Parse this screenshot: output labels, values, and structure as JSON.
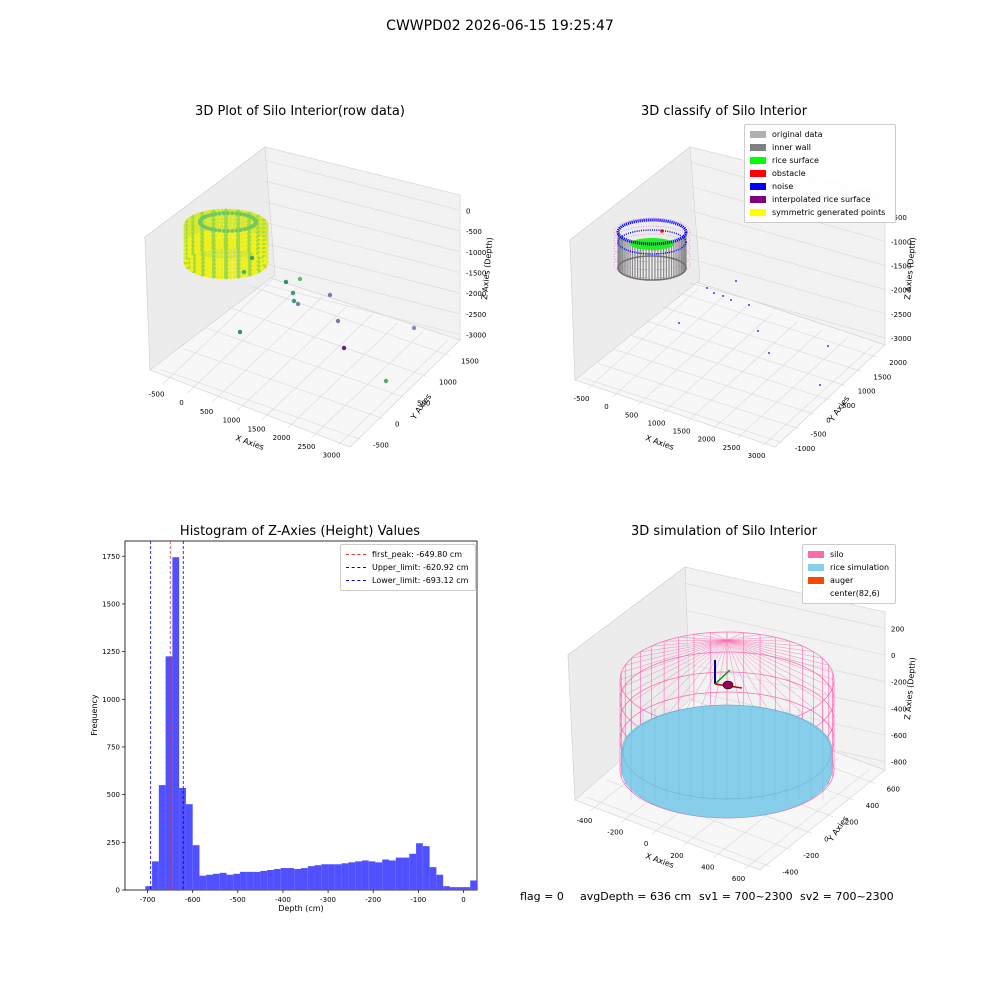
{
  "figure": {
    "suptitle": "CWWPD02 2026-06-15 19:25:47",
    "footer": {
      "flag": "flag = 0",
      "avg_depth": "avgDepth = 636 cm",
      "sv1": "sv1 = 700~2300",
      "sv2": "sv2 = 700~2300"
    }
  },
  "colors": {
    "histogram_bar": "#5050ff",
    "first_peak": "#e03030",
    "limits": "#0000cc",
    "silo": "#ff69b4",
    "rice_simulation": "#87ceeb",
    "auger": "#ff4500",
    "original_data": "#b0b0b0",
    "inner_wall": "#808080",
    "rice_surface": "#00ff00",
    "obstacle": "#ff0000",
    "noise": "#0000ff",
    "interpolated_rice_surface": "#800080",
    "symmetric_generated_points": "#ffff00"
  },
  "chart_data": [
    {
      "type": "scatter",
      "subtype": "3d",
      "title": "3D Plot of Silo Interior(row data)",
      "xlabel": "X Axies",
      "ylabel": "Y Axies",
      "zlabel": "Z Axies (Depth)",
      "xticks": [
        "-500",
        "0",
        "500",
        "1000",
        "1500",
        "2000",
        "2500",
        "3000"
      ],
      "yticks": [
        "-500",
        "0",
        "500",
        "1000",
        "1500"
      ],
      "zticks": [
        "0",
        "-500",
        "-1000",
        "-1500",
        "-2000",
        "-2500",
        "-3000"
      ],
      "xlim": [
        -600,
        3200
      ],
      "ylim": [
        -700,
        1700
      ],
      "zlim": [
        -3300,
        100
      ],
      "surface_cluster": {
        "x": [
          -200,
          600
        ],
        "y": [
          -700,
          200
        ],
        "z": [
          -800,
          -500
        ]
      },
      "outliers": [
        {
          "x": 150,
          "y": -50,
          "z": -1400
        },
        {
          "x": 400,
          "y": -50,
          "z": -1500
        },
        {
          "x": 600,
          "y": 0,
          "z": -1300
        },
        {
          "x": 700,
          "y": 0,
          "z": -1700
        },
        {
          "x": 750,
          "y": 0,
          "z": -1900
        },
        {
          "x": 850,
          "y": 0,
          "z": -2000
        },
        {
          "x": 1200,
          "y": 100,
          "z": -2000
        },
        {
          "x": 1500,
          "y": 0,
          "z": -2500
        },
        {
          "x": 300,
          "y": 0,
          "z": -2800
        },
        {
          "x": 1700,
          "y": -100,
          "z": -2900
        },
        {
          "x": 2800,
          "y": 700,
          "z": -3000
        },
        {
          "x": 2200,
          "y": 1100,
          "z": -3100
        }
      ]
    },
    {
      "type": "scatter",
      "subtype": "3d",
      "title": "3D classify of Silo Interior",
      "xlabel": "X Axies",
      "ylabel": "Y Axies",
      "zlabel": "Z Axies (Depth)",
      "xticks": [
        "-500",
        "0",
        "500",
        "1000",
        "1500",
        "2000",
        "2500",
        "3000"
      ],
      "yticks": [
        "-1000",
        "-500",
        "0",
        "500",
        "1000",
        "1500",
        "2000"
      ],
      "zticks": [
        "-500",
        "-1000",
        "-1500",
        "-2000",
        "-2500",
        "-3000"
      ],
      "xlim": [
        -600,
        3200
      ],
      "ylim": [
        -1200,
        2200
      ],
      "zlim": [
        -3300,
        -300
      ],
      "legend": [
        {
          "label": "original data",
          "color": "#b0b0b0"
        },
        {
          "label": "inner wall",
          "color": "#808080"
        },
        {
          "label": "rice surface",
          "color": "#00ff00"
        },
        {
          "label": "obstacle",
          "color": "#ff0000"
        },
        {
          "label": "noise",
          "color": "#0000ff"
        },
        {
          "label": "interpolated rice surface",
          "color": "#800080"
        },
        {
          "label": "symmetric generated points",
          "color": "#ffff00"
        }
      ],
      "noise_points": [
        {
          "x": 1100,
          "y": 300,
          "z": -1900
        },
        {
          "x": 800,
          "y": 200,
          "z": -2000
        },
        {
          "x": 1000,
          "y": 200,
          "z": -2100
        },
        {
          "x": 1200,
          "y": 300,
          "z": -2200
        },
        {
          "x": 1400,
          "y": 300,
          "z": -2100
        },
        {
          "x": 1300,
          "y": 200,
          "z": -2300
        },
        {
          "x": 700,
          "y": 0,
          "z": -2500
        },
        {
          "x": 1700,
          "y": 300,
          "z": -2500
        },
        {
          "x": 2000,
          "y": 400,
          "z": -2700
        },
        {
          "x": 2500,
          "y": 1400,
          "z": -2900
        },
        {
          "x": 2300,
          "y": 600,
          "z": -3000
        }
      ]
    },
    {
      "type": "bar",
      "subtype": "histogram",
      "title": "Histogram of Z-Axies (Height) Values",
      "xlabel": "Depth (cm)",
      "ylabel": "Frequency",
      "xlim": [
        -750,
        30
      ],
      "ylim": [
        0,
        1830
      ],
      "xticks": [
        -700,
        -600,
        -500,
        -400,
        -300,
        -200,
        -100,
        0
      ],
      "yticks": [
        0,
        250,
        500,
        750,
        1000,
        1250,
        1500,
        1750
      ],
      "bin_width": 15,
      "bin_start": -705,
      "values": [
        20,
        150,
        550,
        1225,
        1745,
        535,
        450,
        235,
        75,
        80,
        85,
        90,
        80,
        85,
        95,
        95,
        95,
        100,
        105,
        110,
        115,
        115,
        110,
        115,
        125,
        130,
        135,
        135,
        135,
        140,
        145,
        150,
        155,
        150,
        145,
        160,
        155,
        170,
        170,
        190,
        245,
        230,
        120,
        80,
        20,
        15,
        15,
        15,
        50
      ],
      "vlines": [
        {
          "label": "first_peak: -649.80 cm",
          "x": -649.8,
          "color": "#e03030"
        },
        {
          "label": "Upper_limit: -620.92 cm",
          "x": -620.92,
          "color": "#0000cc"
        },
        {
          "label": "Lower_limit: -693.12 cm",
          "x": -693.12,
          "color": "#0000cc"
        }
      ]
    },
    {
      "type": "scatter",
      "subtype": "3d-surface",
      "title": "3D simulation of Silo Interior",
      "xlabel": "X Axies",
      "ylabel": "Y Axies",
      "zlabel": "Z Axies (Depth)",
      "xticks": [
        "-400",
        "-200",
        "0",
        "200",
        "400",
        "600"
      ],
      "yticks": [
        "-400",
        "-200",
        "0",
        "200",
        "400",
        "600"
      ],
      "zticks": [
        "200",
        "0",
        "-200",
        "-400",
        "-600",
        "-800"
      ],
      "xlim": [
        -500,
        700
      ],
      "ylim": [
        -500,
        700
      ],
      "zlim": [
        -850,
        350
      ],
      "legend": [
        {
          "label": "silo",
          "color": "#ff69b4"
        },
        {
          "label": "rice simulation",
          "color": "#87ceeb"
        },
        {
          "label": "auger",
          "color": "#ff4500"
        },
        {
          "label": "center(82,6)",
          "color": "none"
        }
      ],
      "center": {
        "x": 82,
        "y": 6
      }
    }
  ]
}
